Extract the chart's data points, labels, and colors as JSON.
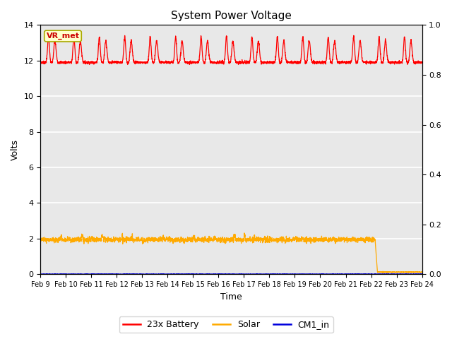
{
  "title": "System Power Voltage",
  "xlabel": "Time",
  "ylabel": "Volts",
  "ylim_left": [
    0,
    14
  ],
  "ylim_right": [
    0.0,
    1.0
  ],
  "yticks_left": [
    0,
    2,
    4,
    6,
    8,
    10,
    12,
    14
  ],
  "yticks_right": [
    0.0,
    0.2,
    0.4,
    0.6,
    0.8,
    1.0
  ],
  "background_color": "#e8e8e8",
  "grid_color": "white",
  "annotation_text": "VR_met",
  "annotation_color": "#cc0000",
  "annotation_bg": "#ffffcc",
  "annotation_edge": "#aaaa00",
  "legend_entries": [
    "23x Battery",
    "Solar",
    "CM1_in"
  ],
  "legend_colors": [
    "#ff0000",
    "#ffaa00",
    "#0000dd"
  ],
  "battery_base": 11.9,
  "battery_peak_high": 13.1,
  "battery_peak_low": 12.6,
  "solar_base": 1.95,
  "num_days": 15,
  "x_tick_labels": [
    "Feb 9",
    "Feb 10",
    "Feb 11",
    "Feb 12",
    "Feb 13",
    "Feb 14",
    "Feb 15",
    "Feb 16",
    "Feb 17",
    "Feb 18",
    "Feb 19",
    "Feb 20",
    "Feb 21",
    "Feb 22",
    "Feb 23",
    "Feb 24"
  ]
}
